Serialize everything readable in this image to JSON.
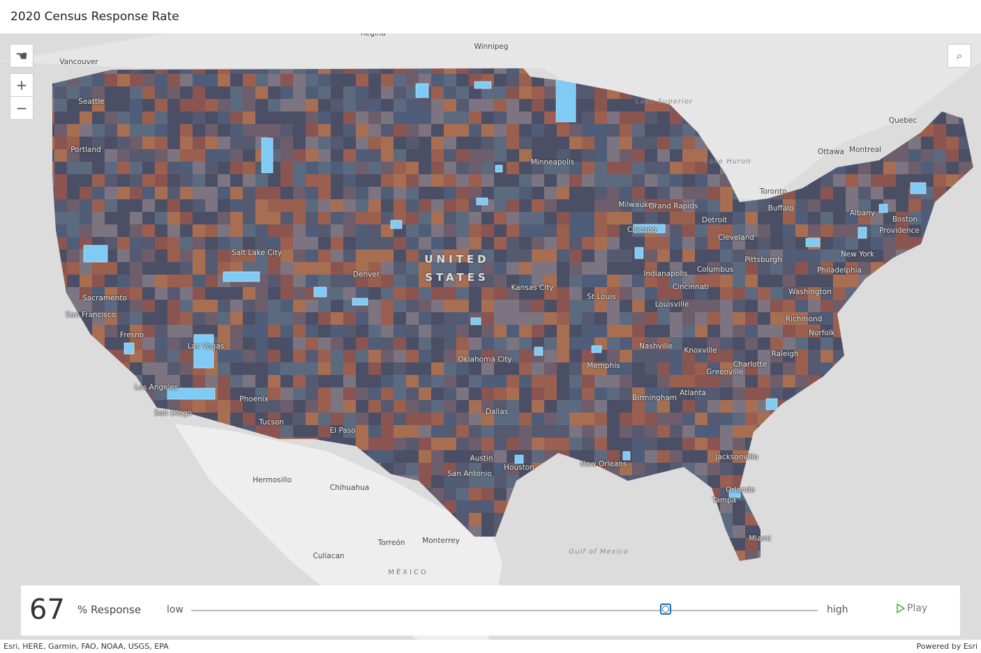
{
  "header": {
    "title": "2020 Census Response Rate"
  },
  "map": {
    "country_labels": [
      "UNITED STATES",
      "MÉXICO"
    ],
    "water_labels": [
      "Lake Superior",
      "Lake Huron",
      "Gulf of Mexico"
    ],
    "us_labels": [
      "Seattle",
      "Portland",
      "Sacramento",
      "San Francisco",
      "Fresno",
      "Los Angeles",
      "San Diego",
      "Las Vegas",
      "Salt Lake City",
      "Phoenix",
      "Tucson",
      "Denver",
      "El Paso",
      "Minneapolis",
      "Milwaukee",
      "Grand Rapids",
      "Chicago",
      "Detroit",
      "Cleveland",
      "Buffalo",
      "Albany",
      "Boston",
      "Providence",
      "New York",
      "Philadelphia",
      "Washington",
      "Pittsburgh",
      "Columbus",
      "Indianapolis",
      "Cincinnati",
      "Louisville",
      "St Louis",
      "Kansas City",
      "Oklahoma City",
      "Dallas",
      "Austin",
      "San Antonio",
      "Houston",
      "New Orleans",
      "Memphis",
      "Nashville",
      "Knoxville",
      "Birmingham",
      "Atlanta",
      "Charlotte",
      "Greenville",
      "Raleigh",
      "Richmond",
      "Norfolk",
      "Jacksonville",
      "Orlando",
      "Tampa",
      "Miami"
    ],
    "other_labels": [
      "Regina",
      "Winnipeg",
      "Vancouver",
      "Toronto",
      "Ottawa",
      "Montreal",
      "Quebec",
      "Hermosillo",
      "Chihuahua",
      "Torreón",
      "Monterrey",
      "Culiacan"
    ]
  },
  "slider": {
    "value": 67,
    "unit_label": "% Response",
    "low_label": "low",
    "high_label": "high",
    "play_label": "Play"
  },
  "attribution": {
    "sources": "Esri, HERE, Garmin, FAO, NOAA, USGS, EPA",
    "powered_by": "Powered by Esri"
  }
}
